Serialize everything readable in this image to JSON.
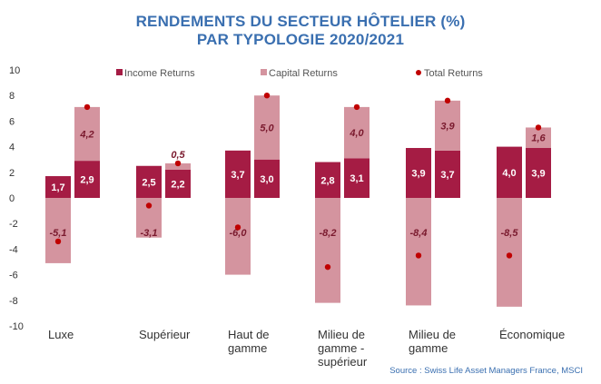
{
  "title_line1": "RENDEMENTS DU SECTEUR HÔTELIER (%)",
  "title_line2": "PAR TYPOLOGIE 2020/2021",
  "source": "Source : Swiss Life Asset Managers France, MSCI",
  "colors": {
    "income": "#a51c44",
    "capital": "#d4949f",
    "total": "#c00000",
    "title": "#3a6fb0"
  },
  "chart_data": {
    "type": "bar",
    "stacked": true,
    "grouping": "two bars per category (2020, 2021)",
    "categories": [
      "Luxe",
      "Supérieur",
      "Haut de gamme",
      "Milieu de gamme - supérieur",
      "Milieu de gamme",
      "Économique"
    ],
    "category_labels": [
      [
        "Luxe"
      ],
      [
        "Supérieur"
      ],
      [
        "Haut de",
        "gamme"
      ],
      [
        "Milieu de",
        "gamme -",
        "supérieur"
      ],
      [
        "Milieu de",
        "gamme"
      ],
      [
        "Économique"
      ]
    ],
    "series": [
      {
        "name": "Income Returns",
        "values_2020": [
          1.7,
          2.5,
          3.7,
          2.8,
          3.9,
          4.0
        ],
        "values_2021": [
          2.9,
          2.2,
          3.0,
          3.1,
          3.7,
          3.9
        ]
      },
      {
        "name": "Capital Returns",
        "values_2020": [
          -5.1,
          -3.1,
          -6.0,
          -8.2,
          -8.4,
          -8.5
        ],
        "values_2021": [
          4.2,
          0.5,
          5.0,
          4.0,
          3.9,
          1.6
        ]
      },
      {
        "name": "Total Returns",
        "values_2020": [
          -3.4,
          -0.6,
          -2.3,
          -5.4,
          -4.5,
          -4.5
        ],
        "values_2021": [
          7.1,
          2.7,
          8.0,
          7.1,
          7.6,
          5.5
        ]
      }
    ],
    "data_labels": {
      "income_2020": [
        "1,7",
        "2,5",
        "3,7",
        "2,8",
        "3,9",
        "4,0"
      ],
      "income_2021": [
        "2,9",
        "2,2",
        "3,0",
        "3,1",
        "3,7",
        "3,9"
      ],
      "capital_2020": [
        "-5,1",
        "-3,1",
        "-6,0",
        "-8,2",
        "-8,4",
        "-8,5"
      ],
      "capital_2021": [
        "4,2",
        "0,5",
        "5,0",
        "4,0",
        "3,9",
        "1,6"
      ]
    },
    "y_ticks": [
      "10",
      "8",
      "6",
      "4",
      "2",
      "0",
      "-2",
      "-4",
      "-6",
      "-8",
      "-10"
    ],
    "ylim": [
      -10,
      10
    ],
    "grid": false,
    "legend_position": "top"
  }
}
